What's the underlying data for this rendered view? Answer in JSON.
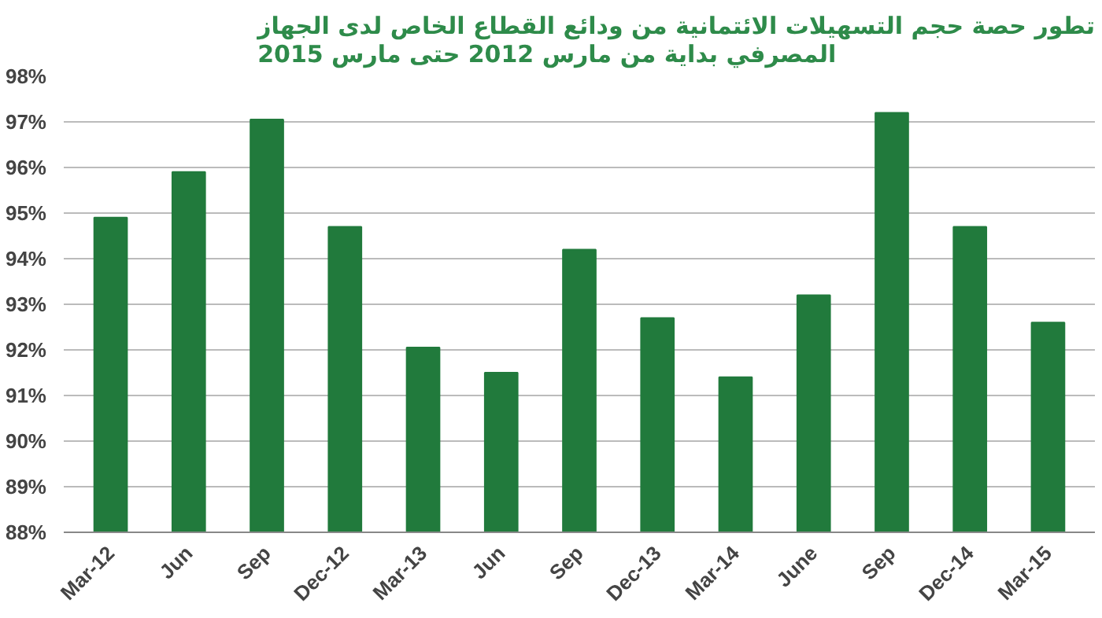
{
  "chart_data": {
    "type": "bar",
    "title": "تطور حصة حجم التسهيلات الائتمانية من ودائع القطاع الخاص لدى الجهاز\nالمصرفي بداية من مارس 2012 حتى مارس 2015",
    "categories": [
      "Mar-12",
      "Jun",
      "Sep",
      "Dec-12",
      "Mar-13",
      "Jun",
      "Sep",
      "Dec-13",
      "Mar-14",
      "June",
      "Sep",
      "Dec-14",
      "Mar-15"
    ],
    "values": [
      94.9,
      95.9,
      97.05,
      94.7,
      92.05,
      91.5,
      94.2,
      92.7,
      91.4,
      93.2,
      97.2,
      94.7,
      92.6
    ],
    "color": "#217a3c",
    "ylim": [
      88,
      98
    ],
    "yticks": [
      {
        "value": 88,
        "label": "88%"
      },
      {
        "value": 89,
        "label": "89%"
      },
      {
        "value": 90,
        "label": "90%"
      },
      {
        "value": 91,
        "label": "91%"
      },
      {
        "value": 92,
        "label": "92%"
      },
      {
        "value": 93,
        "label": "93%"
      },
      {
        "value": 94,
        "label": "94%"
      },
      {
        "value": 95,
        "label": "95%"
      },
      {
        "value": 96,
        "label": "96%"
      },
      {
        "value": 97,
        "label": "97%"
      },
      {
        "value": 98,
        "label": "98%"
      }
    ],
    "grid": "y"
  }
}
